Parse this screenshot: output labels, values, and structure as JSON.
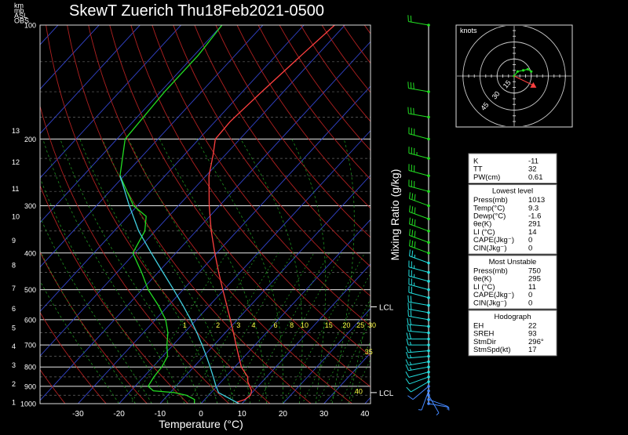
{
  "title": "SkewT Zuerich Thu18Feb2021-0500",
  "corner_labels": [
    "km",
    "mb",
    "ASL",
    "OBS"
  ],
  "x_axis_label": "Temperature (°C)",
  "mixing_ratio_label": "Mixing Ratio (g/kg)",
  "hodograph": {
    "units_label": "knots",
    "ring_labels": [
      "15",
      "30",
      "45"
    ],
    "storm_motion": {
      "dir_deg": 296,
      "spd_kt": 17
    },
    "trace": [
      {
        "u": 0,
        "v": 0
      },
      {
        "u": 3,
        "v": 4
      },
      {
        "u": 8,
        "v": 5
      },
      {
        "u": 12,
        "v": 6
      },
      {
        "u": 15,
        "v": 4
      }
    ]
  },
  "chart_data": {
    "type": "line",
    "x_range": [
      -40,
      40
    ],
    "x_ticks": [
      -30,
      -20,
      -10,
      0,
      10,
      20,
      30,
      40
    ],
    "pressure_range_mb": [
      100,
      1000
    ],
    "pressure_ticks": [
      100,
      200,
      300,
      400,
      500,
      600,
      700,
      800,
      900,
      1000
    ],
    "height_ticks_km": [
      {
        "km": 1,
        "p": 990
      },
      {
        "km": 2,
        "p": 885
      },
      {
        "km": 3,
        "p": 790
      },
      {
        "km": 4,
        "p": 705
      },
      {
        "km": 5,
        "p": 630
      },
      {
        "km": 6,
        "p": 560
      },
      {
        "km": 7,
        "p": 495
      },
      {
        "km": 8,
        "p": 430
      },
      {
        "km": 9,
        "p": 370
      },
      {
        "km": 10,
        "p": 320
      },
      {
        "km": 11,
        "p": 270
      },
      {
        "km": 12,
        "p": 230
      },
      {
        "km": 13,
        "p": 190
      }
    ],
    "mixing_ratio_values": [
      "1",
      "2",
      "3",
      "4",
      "6",
      "8",
      "10",
      "15",
      "20",
      "25",
      "30",
      "35",
      "40"
    ],
    "lcl_labels": [
      {
        "label": "LCL",
        "p": 555
      },
      {
        "label": "LCL",
        "p": 935
      }
    ],
    "series": [
      {
        "name": "Temperature",
        "color": "#ff4040",
        "points": [
          [
            1000,
            9.3
          ],
          [
            990,
            8.5
          ],
          [
            975,
            9.8
          ],
          [
            950,
            10.2
          ],
          [
            925,
            9.5
          ],
          [
            900,
            8.0
          ],
          [
            875,
            6.5
          ],
          [
            850,
            5.4
          ],
          [
            800,
            1.6
          ],
          [
            750,
            -1.4
          ],
          [
            700,
            -4.6
          ],
          [
            650,
            -8.0
          ],
          [
            600,
            -11.7
          ],
          [
            550,
            -15.8
          ],
          [
            500,
            -20.3
          ],
          [
            450,
            -25.2
          ],
          [
            400,
            -30.5
          ],
          [
            350,
            -36.3
          ],
          [
            300,
            -42.5
          ],
          [
            250,
            -49.3
          ],
          [
            220,
            -53.0
          ],
          [
            200,
            -56.0
          ],
          [
            180,
            -56.3
          ],
          [
            150,
            -55.3
          ],
          [
            120,
            -53.8
          ],
          [
            100,
            -52.5
          ]
        ]
      },
      {
        "name": "Dewpoint",
        "color": "#22dd22",
        "points": [
          [
            1000,
            -1.6
          ],
          [
            975,
            -2.5
          ],
          [
            950,
            -5.5
          ],
          [
            935,
            -9.0
          ],
          [
            925,
            -14.5
          ],
          [
            900,
            -16.8
          ],
          [
            850,
            -17.5
          ],
          [
            800,
            -17.8
          ],
          [
            750,
            -18.8
          ],
          [
            700,
            -21.5
          ],
          [
            650,
            -24.0
          ],
          [
            600,
            -27.5
          ],
          [
            550,
            -32.5
          ],
          [
            500,
            -38.5
          ],
          [
            450,
            -44.0
          ],
          [
            400,
            -50.5
          ],
          [
            350,
            -52.5
          ],
          [
            320,
            -55.5
          ],
          [
            300,
            -61.0
          ],
          [
            250,
            -71.0
          ],
          [
            200,
            -78.0
          ],
          [
            150,
            -79.0
          ],
          [
            120,
            -79.0
          ],
          [
            100,
            -80.0
          ]
        ]
      },
      {
        "name": "Parcel",
        "color": "#40d0e0",
        "points": [
          [
            1000,
            9.3
          ],
          [
            935,
            1.8
          ],
          [
            900,
            -0.2
          ],
          [
            850,
            -3.0
          ],
          [
            800,
            -6.0
          ],
          [
            750,
            -9.3
          ],
          [
            700,
            -12.9
          ],
          [
            650,
            -16.9
          ],
          [
            600,
            -21.4
          ],
          [
            550,
            -26.5
          ],
          [
            500,
            -32.3
          ],
          [
            450,
            -38.8
          ],
          [
            400,
            -46.0
          ],
          [
            350,
            -54.0
          ],
          [
            300,
            -62.0
          ],
          [
            250,
            -71.0
          ]
        ]
      }
    ]
  },
  "wind_profile": [
    [
      1000,
      100,
      4
    ],
    [
      975,
      110,
      4
    ],
    [
      950,
      150,
      5
    ],
    [
      925,
      200,
      6
    ],
    [
      900,
      230,
      8
    ],
    [
      875,
      240,
      10
    ],
    [
      850,
      250,
      12
    ],
    [
      825,
      255,
      12
    ],
    [
      800,
      260,
      13
    ],
    [
      775,
      260,
      14
    ],
    [
      750,
      265,
      15
    ],
    [
      725,
      265,
      16
    ],
    [
      700,
      270,
      17
    ],
    [
      675,
      270,
      18
    ],
    [
      650,
      275,
      19
    ],
    [
      625,
      275,
      20
    ],
    [
      600,
      280,
      20
    ],
    [
      575,
      280,
      21
    ],
    [
      550,
      280,
      22
    ],
    [
      525,
      285,
      22
    ],
    [
      500,
      285,
      24
    ],
    [
      475,
      285,
      25
    ],
    [
      450,
      285,
      26
    ],
    [
      425,
      290,
      27
    ],
    [
      400,
      290,
      28
    ],
    [
      375,
      290,
      29
    ],
    [
      350,
      290,
      30
    ],
    [
      325,
      290,
      31
    ],
    [
      300,
      290,
      31
    ],
    [
      275,
      285,
      32
    ],
    [
      250,
      285,
      32
    ],
    [
      225,
      285,
      33
    ],
    [
      200,
      285,
      32
    ],
    [
      175,
      280,
      30
    ],
    [
      150,
      280,
      30
    ],
    [
      100,
      280,
      20
    ]
  ],
  "indices": {
    "top": [
      {
        "label": "K",
        "value": "-11"
      },
      {
        "label": "TT",
        "value": "32"
      },
      {
        "label": "PW(cm)",
        "value": "0.61"
      }
    ],
    "lowest_title": "Lowest level",
    "lowest": [
      {
        "label": "Press(mb)",
        "value": "1013"
      },
      {
        "label": "Temp(°C)",
        "value": "9.3"
      },
      {
        "label": "Dewp(°C)",
        "value": "-1.6"
      },
      {
        "label": "θe(K)",
        "value": "291"
      },
      {
        "label": "LI (°C)",
        "value": "14"
      },
      {
        "label": "CAPE(Jkg⁻)",
        "value": "0"
      },
      {
        "label": "CIN(Jkg⁻)",
        "value": "0"
      }
    ],
    "unstable_title": "Most Unstable",
    "unstable": [
      {
        "label": "Press(mb)",
        "value": "750"
      },
      {
        "label": "θe(K)",
        "value": "295"
      },
      {
        "label": "LI (°C)",
        "value": "11"
      },
      {
        "label": "CAPE(Jkg⁻)",
        "value": "0"
      },
      {
        "label": "CIN(Jkg⁻)",
        "value": "0"
      }
    ],
    "hodo_title": "Hodograph",
    "hodo": [
      {
        "label": "EH",
        "value": "22"
      },
      {
        "label": "SREH",
        "value": "93"
      },
      {
        "label": "StmDir",
        "value": "296°"
      },
      {
        "label": "StmSpd(kt)",
        "value": "17"
      }
    ]
  }
}
